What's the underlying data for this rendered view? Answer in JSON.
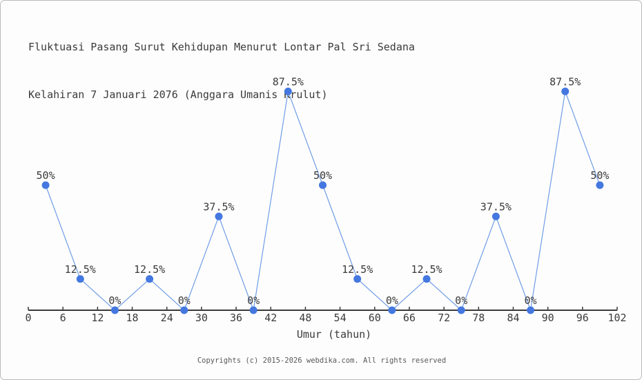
{
  "page": {
    "title_line1": "Fluktuasi Pasang Surut Kehidupan Menurut Lontar Pal Sri Sedana",
    "title_line2": "Kelahiran 7 Januari 2076 (Anggara Umanis Krulut)",
    "footer": "Copyrights (c) 2015-2026 webdika.com. All rights reserved"
  },
  "colors": {
    "line": "#6f9de6",
    "marker": "#4478e0",
    "axis": "#3a3a3a",
    "text": "#3a3a3a",
    "footer_text": "#585858",
    "background": "#fdfdfd",
    "border": "#b9b9b9"
  },
  "chart_data": {
    "type": "line",
    "title": "Fluktuasi Pasang Surut Kehidupan Menurut Lontar Pal Sri Sedana Kelahiran 7 Januari 2076 (Anggara Umanis Krulut)",
    "xlabel": "Umur (tahun)",
    "ylabel": "",
    "x": [
      3,
      9,
      15,
      21,
      27,
      33,
      39,
      45,
      51,
      57,
      63,
      69,
      75,
      81,
      87,
      93,
      99
    ],
    "values": [
      50,
      12.5,
      0,
      12.5,
      0,
      37.5,
      0,
      87.5,
      50,
      12.5,
      0,
      12.5,
      0,
      37.5,
      0,
      87.5,
      50
    ],
    "point_labels": [
      "50%",
      "12.5%",
      "0%",
      "12.5%",
      "0%",
      "37.5%",
      "0%",
      "87.5%",
      "50%",
      "12.5%",
      "0%",
      "12.5%",
      "0%",
      "37.5%",
      "0%",
      "87.5%",
      "50%"
    ],
    "x_ticks": [
      0,
      6,
      12,
      18,
      24,
      30,
      36,
      42,
      48,
      54,
      60,
      66,
      72,
      78,
      84,
      90,
      96,
      102
    ],
    "xlim": [
      0,
      102
    ],
    "ylim": [
      0,
      100
    ],
    "grid": false,
    "legend": "none",
    "y_axis_shown": false
  }
}
